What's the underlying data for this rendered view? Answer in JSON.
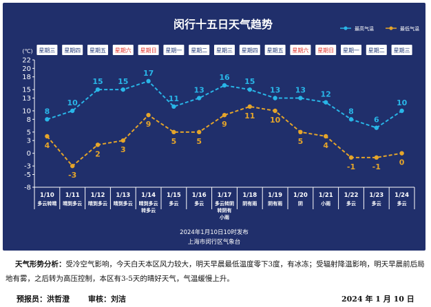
{
  "chart_data": {
    "type": "line",
    "title": "闵行十五日天气趋势",
    "ylabel": "(℃)",
    "ylim": [
      -8,
      22
    ],
    "yticks": [
      -8,
      -5,
      -3,
      0,
      3,
      5,
      8,
      10,
      13,
      15,
      18,
      20,
      22
    ],
    "weekdays": [
      "星期三",
      "星期四",
      "星期五",
      "星期六",
      "星期日",
      "星期一",
      "星期二",
      "星期三",
      "星期四",
      "星期五",
      "星期六",
      "星期日",
      "星期一",
      "星期二",
      "星期三"
    ],
    "weekend_flags": [
      false,
      false,
      false,
      true,
      true,
      false,
      false,
      false,
      false,
      false,
      true,
      true,
      false,
      false,
      false
    ],
    "dates": [
      "1/10",
      "1/11",
      "1/12",
      "1/13",
      "1/14",
      "1/15",
      "1/16",
      "1/17",
      "1/18",
      "1/19",
      "1/20",
      "1/21",
      "1/22",
      "1/23",
      "1/24"
    ],
    "conditions": [
      [
        "多云转晴"
      ],
      [
        "晴到多云"
      ],
      [
        "晴到多云"
      ],
      [
        "晴到多云"
      ],
      [
        "晴到多云",
        "转多云"
      ],
      [
        "多云"
      ],
      [
        "多云"
      ],
      [
        "多云转阴",
        "转阴有",
        "小雨"
      ],
      [
        "阴有雨"
      ],
      [
        "阴有雨"
      ],
      [
        "阴"
      ],
      [
        "小雨"
      ],
      [
        "多云"
      ],
      [
        "多云"
      ],
      [
        "多云"
      ]
    ],
    "series": [
      {
        "name": "最高气温",
        "color": "#29b6e8",
        "values": [
          8,
          10,
          15,
          15,
          17,
          11,
          13,
          16,
          15,
          13,
          13,
          12,
          8,
          6,
          10
        ]
      },
      {
        "name": "最低气温",
        "color": "#e5a52a",
        "values": [
          4,
          -3,
          2,
          3,
          9,
          5,
          5,
          9,
          11,
          10,
          5,
          4,
          -1,
          -1,
          0
        ]
      }
    ],
    "publish_time": "2024年1月10日10时发布",
    "publisher": "上海市闵行区气象台"
  },
  "description": {
    "label": "天气形势分析：",
    "text": "受冷空气影响，今天白天本区风力较大，明天早晨最低温度零下3度，有冰冻；受辐射降温影响，明天早晨前后局地有雾，之后转为高压控制，本区有3-5天的晴好天气，气温缓慢上升。"
  },
  "footer": {
    "forecaster": "预报员：洪哲澄",
    "reviewer": "审核：刘洁",
    "date": "2024 年 1 月 10 日"
  }
}
